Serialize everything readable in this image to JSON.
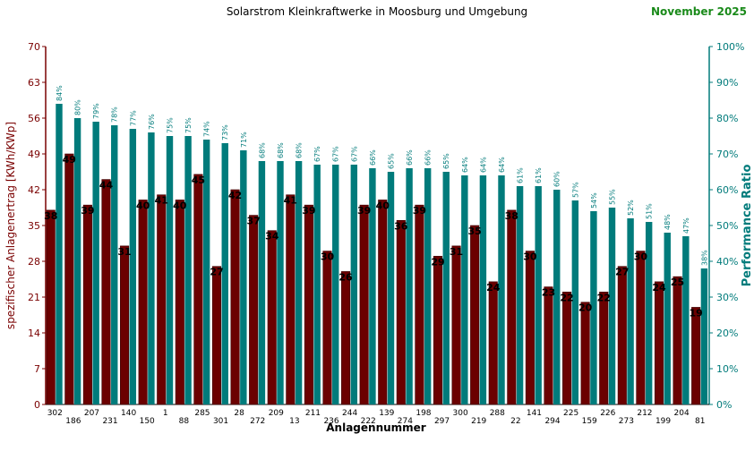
{
  "chart_data": {
    "type": "bar",
    "title": "Solarstrom Kleinkraftwerke in Moosburg und Umgebung",
    "date_label": "November 2025",
    "xlabel": "Anlagennummer",
    "ylabel_left": "spezifischer Anlagenertrag  [KWh/KWp]",
    "ylabel_right": "Performance Ratio",
    "ylim_left": [
      0,
      70
    ],
    "yticks_left": [
      0,
      7,
      14,
      21,
      28,
      35,
      42,
      49,
      56,
      63,
      70
    ],
    "ylim_right": [
      0,
      100
    ],
    "yticks_right": [
      "0%",
      "10%",
      "20%",
      "30%",
      "40%",
      "50%",
      "60%",
      "70%",
      "80%",
      "90%",
      "100%"
    ],
    "grid": false,
    "categories": [
      "302",
      "186",
      "207",
      "231",
      "140",
      "150",
      "1",
      "88",
      "285",
      "301",
      "28",
      "272",
      "209",
      "13",
      "211",
      "236",
      "244",
      "222",
      "139",
      "274",
      "198",
      "297",
      "300",
      "219",
      "288",
      "22",
      "141",
      "294",
      "225",
      "159",
      "226",
      "273",
      "212",
      "199",
      "204",
      "81"
    ],
    "series": [
      {
        "name": "spezifischer Anlagenertrag",
        "axis": "left",
        "values": [
          38,
          49,
          39,
          44,
          31,
          40,
          41,
          40,
          45,
          27,
          42,
          37,
          34,
          41,
          39,
          30,
          26,
          39,
          40,
          36,
          39,
          29,
          31,
          35,
          24,
          38,
          30,
          23,
          22,
          20,
          22,
          27,
          30,
          24,
          25,
          19
        ],
        "labels": [
          "38",
          "49",
          "39",
          "44",
          "31",
          "40",
          "41",
          "40",
          "45",
          "27",
          "42",
          "37",
          "34",
          "41",
          "39",
          "30",
          "26",
          "39",
          "40",
          "36",
          "39",
          "29",
          "31",
          "35",
          "24",
          "38",
          "30",
          "23",
          "22",
          "20",
          "22",
          "27",
          "30",
          "24",
          "25",
          "19"
        ]
      },
      {
        "name": "Performance Ratio",
        "axis": "right",
        "values": [
          84,
          80,
          79,
          78,
          77,
          76,
          75,
          75,
          74,
          73,
          71,
          68,
          68,
          68,
          67,
          67,
          67,
          66,
          65,
          66,
          66,
          65,
          64,
          64,
          64,
          61,
          61,
          60,
          57,
          54,
          55,
          52,
          51,
          48,
          47,
          38
        ],
        "labels": [
          "84%",
          "80%",
          "79%",
          "78%",
          "77%",
          "76%",
          "75%",
          "75%",
          "74%",
          "73%",
          "71%",
          "68%",
          "68%",
          "68%",
          "67%",
          "67%",
          "67%",
          "66%",
          "65%",
          "66%",
          "66%",
          "65%",
          "64%",
          "64%",
          "64%",
          "61%",
          "61%",
          "60%",
          "57%",
          "54%",
          "55%",
          "52%",
          "51%",
          "48%",
          "47%",
          "38%"
        ]
      }
    ],
    "colors": {
      "yield_bar": "#6b0000",
      "pr_bar": "#007b7b",
      "left_axis": "#7a0000",
      "right_axis": "#007b7b",
      "date": "#1a8a1a"
    }
  }
}
